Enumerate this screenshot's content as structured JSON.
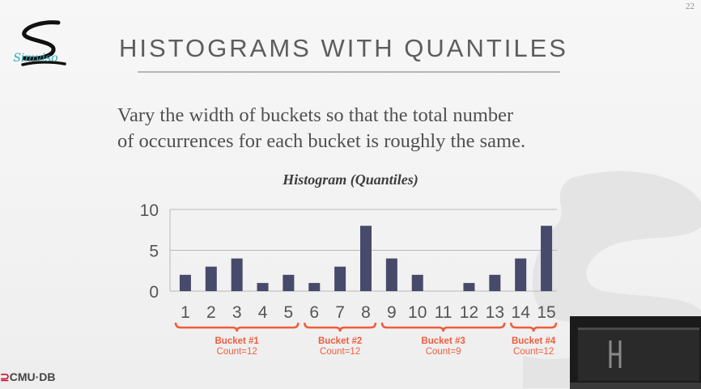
{
  "page_number": "22",
  "logo": {
    "text": "Simviso"
  },
  "title": "HISTOGRAMS WITH QUANTILES",
  "body": {
    "line1": "Vary the width of buckets so that the total number",
    "line2": "of occurrences for each bucket is roughly the same."
  },
  "footer": {
    "brand_prefix": "",
    "brand": "CMU·DB"
  },
  "colors": {
    "bar": "#474a6a",
    "bucket": "#ef5d3d",
    "title": "#5d5d5d",
    "accent": "#2ea9b7"
  },
  "chart_data": {
    "type": "bar",
    "title": "Histogram (Quantiles)",
    "xlabel": "",
    "ylabel": "",
    "ylim": [
      0,
      10
    ],
    "yticks": [
      0,
      5,
      10
    ],
    "categories": [
      "1",
      "2",
      "3",
      "4",
      "5",
      "6",
      "7",
      "8",
      "9",
      "10",
      "11",
      "12",
      "13",
      "14",
      "15"
    ],
    "values": [
      2,
      3,
      4,
      1,
      2,
      1,
      3,
      8,
      4,
      2,
      0,
      1,
      2,
      4,
      8
    ],
    "grid": true,
    "legend": "none",
    "buckets": [
      {
        "label": "Bucket #1",
        "count": "Count=12",
        "from": 1,
        "to": 5
      },
      {
        "label": "Bucket #2",
        "count": "Count=12",
        "from": 6,
        "to": 8
      },
      {
        "label": "Bucket #3",
        "count": "Count=9",
        "from": 9,
        "to": 13
      },
      {
        "label": "Bucket #4",
        "count": "Count=12",
        "from": 14,
        "to": 15
      }
    ]
  }
}
